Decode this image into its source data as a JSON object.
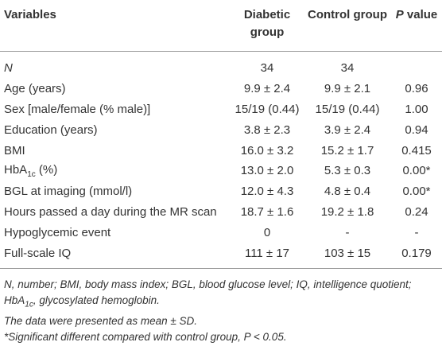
{
  "table": {
    "header": [
      "Variables",
      "Diabetic group",
      "Control group",
      [
        {
          "text": "P",
          "italic": true
        },
        {
          "text": " value"
        }
      ]
    ],
    "rows": [
      [
        [
          {
            "text": "N",
            "italic": true
          }
        ],
        "34",
        "34",
        ""
      ],
      [
        "Age (years)",
        "9.9 ± 2.4",
        "9.9 ± 2.1",
        "0.96"
      ],
      [
        "Sex [male/female (% male)]",
        "15/19 (0.44)",
        "15/19 (0.44)",
        "1.00"
      ],
      [
        "Education (years)",
        "3.8 ± 2.3",
        "3.9 ± 2.4",
        "0.94"
      ],
      [
        "BMI",
        "16.0 ± 3.2",
        "15.2 ± 1.7",
        "0.415"
      ],
      [
        [
          {
            "text": "HbA"
          },
          {
            "text": "1c",
            "sub": true
          },
          {
            "text": " (%)"
          }
        ],
        "13.0 ± 2.0",
        "5.3 ± 0.3",
        "0.00*"
      ],
      [
        "BGL at imaging (mmol/l)",
        "12.0 ± 4.3",
        "4.8 ± 0.4",
        "0.00*"
      ],
      [
        "Hours passed a day during the MR scan",
        "18.7 ± 1.6",
        "19.2 ± 1.8",
        "0.24"
      ],
      [
        "Hypoglycemic event",
        "0",
        "-",
        "-"
      ],
      [
        "Full-scale IQ",
        "111 ± 17",
        "103 ± 15",
        "0.179"
      ]
    ]
  },
  "footnotes": [
    [
      {
        "text": "N, number; BMI, body mass index; BGL, blood glucose level; IQ, intelligence quotient; HbA"
      },
      {
        "text": "1c",
        "sub": true
      },
      {
        "text": ", glycosylated hemoglobin."
      }
    ],
    [
      {
        "text": "The data were presented as mean ± SD."
      }
    ],
    [
      {
        "text": "*Significant different compared with control group, P < 0.05."
      }
    ]
  ]
}
